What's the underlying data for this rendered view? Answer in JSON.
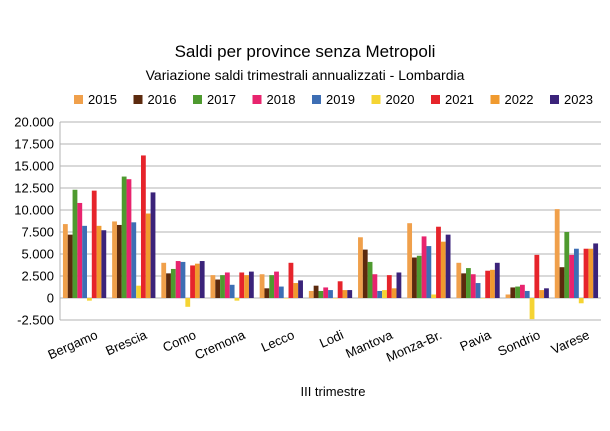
{
  "chart_data": {
    "type": "bar",
    "title": "Saldi per province senza Metropoli",
    "subtitle": "Variazione saldi trimestrali annualizzati - Lombardia",
    "xlabel": "III trimestre",
    "ylabel": "",
    "ylim": [
      -2500,
      20000
    ],
    "yticks": [
      -2500,
      0,
      2500,
      5000,
      7500,
      10000,
      12500,
      15000,
      17500,
      20000
    ],
    "ytick_labels": [
      "-2.500",
      "0",
      "2.500",
      "5.000",
      "7.500",
      "10.000",
      "12.500",
      "15.000",
      "17.500",
      "20.000"
    ],
    "grid": "horizontal",
    "legend_position": "top",
    "categories": [
      "Bergamo",
      "Brescia",
      "Como",
      "Cremona",
      "Lecco",
      "Lodi",
      "Mantova",
      "Monza-Br.",
      "Pavia",
      "Sondrio",
      "Varese"
    ],
    "series": [
      {
        "name": "2015",
        "color": "#f0a04b",
        "values": [
          8400,
          8700,
          4000,
          2600,
          2700,
          800,
          6900,
          8500,
          4000,
          400,
          10100
        ]
      },
      {
        "name": "2016",
        "color": "#5c2a0e",
        "values": [
          7200,
          8300,
          2800,
          2100,
          1100,
          1400,
          5500,
          4600,
          2800,
          1200,
          3500
        ]
      },
      {
        "name": "2017",
        "color": "#4e9a2f",
        "values": [
          12300,
          13800,
          3300,
          2600,
          2600,
          800,
          4100,
          4800,
          3400,
          1300,
          7500
        ]
      },
      {
        "name": "2018",
        "color": "#e8246e",
        "values": [
          10800,
          13500,
          4200,
          2900,
          3000,
          1200,
          2700,
          7000,
          2700,
          1500,
          4900
        ]
      },
      {
        "name": "2019",
        "color": "#3d6eb4",
        "values": [
          8200,
          8600,
          4100,
          1500,
          1300,
          900,
          800,
          5900,
          1700,
          800,
          5600
        ]
      },
      {
        "name": "2020",
        "color": "#f5d433",
        "values": [
          -300,
          1400,
          -1000,
          -300,
          0,
          0,
          900,
          400,
          0,
          -2400,
          -600
        ]
      },
      {
        "name": "2021",
        "color": "#e6242b",
        "values": [
          12200,
          16200,
          3700,
          2900,
          4000,
          1900,
          2600,
          8100,
          3100,
          4900,
          5600
        ]
      },
      {
        "name": "2022",
        "color": "#f09a2f",
        "values": [
          8200,
          9600,
          3900,
          2600,
          1700,
          900,
          1100,
          6400,
          3200,
          900,
          5600
        ]
      },
      {
        "name": "2023",
        "color": "#3b237a",
        "values": [
          7700,
          12000,
          4200,
          3000,
          2000,
          900,
          2900,
          7200,
          4000,
          1100,
          6200
        ]
      }
    ]
  }
}
